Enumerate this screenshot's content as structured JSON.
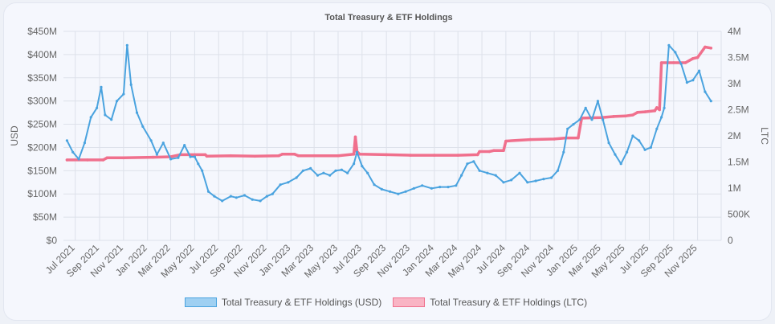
{
  "chart_data": {
    "type": "line",
    "title": "Total Treasury & ETF Holdings",
    "y_left_label": "USD",
    "y_right_label": "LTC",
    "y_left_ticks": [
      "$0",
      "$50M",
      "$100M",
      "$150M",
      "$200M",
      "$250M",
      "$300M",
      "$350M",
      "$400M",
      "$450M"
    ],
    "y_right_ticks": [
      "0",
      "500K",
      "1M",
      "1.5M",
      "2M",
      "2.5M",
      "3M",
      "3.5M",
      "4M"
    ],
    "y_left_range": [
      0,
      450000000
    ],
    "y_right_range": [
      0,
      4000000
    ],
    "x_ticks": [
      "Jul 2021",
      "Sep 2021",
      "Nov 2021",
      "Jan 2022",
      "Mar 2022",
      "May 2022",
      "Jul 2022",
      "Sep 2022",
      "Nov 2022",
      "Jan 2023",
      "Mar 2023",
      "May 2023",
      "Jul 2023",
      "Sep 2023",
      "Nov 2023",
      "Jan 2024",
      "Mar 2024",
      "May 2024",
      "Jul 2024",
      "Sep 2024",
      "Nov 2024",
      "Jan 2025",
      "Mar 2025",
      "May 2025",
      "Jul 2025",
      "Sep 2025",
      "Nov 2025"
    ],
    "grid": true,
    "legend_position": "bottom",
    "series": [
      {
        "name": "Total Treasury & ETF Holdings (USD)",
        "axis": "left",
        "color": "#4aa3df",
        "fill": "#9fd0f2",
        "x": [
          "2021-06-10",
          "2021-06-25",
          "2021-07-10",
          "2021-07-25",
          "2021-08-10",
          "2021-08-25",
          "2021-09-05",
          "2021-09-15",
          "2021-10-01",
          "2021-10-15",
          "2021-11-01",
          "2021-11-10",
          "2021-11-20",
          "2021-12-05",
          "2021-12-20",
          "2022-01-10",
          "2022-01-25",
          "2022-02-10",
          "2022-03-01",
          "2022-03-20",
          "2022-04-05",
          "2022-04-20",
          "2022-05-01",
          "2022-05-10",
          "2022-05-20",
          "2022-06-05",
          "2022-06-20",
          "2022-07-10",
          "2022-08-01",
          "2022-08-15",
          "2022-09-05",
          "2022-09-25",
          "2022-10-15",
          "2022-11-01",
          "2022-11-15",
          "2022-12-05",
          "2022-12-25",
          "2023-01-15",
          "2023-02-01",
          "2023-02-20",
          "2023-03-10",
          "2023-03-25",
          "2023-04-10",
          "2023-04-25",
          "2023-05-10",
          "2023-05-25",
          "2023-06-10",
          "2023-06-18",
          "2023-07-01",
          "2023-07-15",
          "2023-08-01",
          "2023-08-20",
          "2023-09-10",
          "2023-10-01",
          "2023-10-20",
          "2023-11-10",
          "2023-12-01",
          "2023-12-25",
          "2024-01-15",
          "2024-02-05",
          "2024-02-25",
          "2024-03-10",
          "2024-03-25",
          "2024-04-10",
          "2024-04-25",
          "2024-05-15",
          "2024-06-05",
          "2024-06-25",
          "2024-07-15",
          "2024-08-05",
          "2024-08-25",
          "2024-09-15",
          "2024-10-05",
          "2024-10-25",
          "2024-11-10",
          "2024-11-25",
          "2024-12-05",
          "2024-12-20",
          "2025-01-05",
          "2025-01-20",
          "2025-02-05",
          "2025-02-20",
          "2025-03-05",
          "2025-03-20",
          "2025-04-05",
          "2025-04-20",
          "2025-05-05",
          "2025-05-20",
          "2025-06-05",
          "2025-06-20",
          "2025-07-05",
          "2025-07-20",
          "2025-08-01",
          "2025-08-08",
          "2025-08-20",
          "2025-09-05",
          "2025-09-20",
          "2025-10-05",
          "2025-10-20",
          "2025-11-05",
          "2025-11-20",
          "2025-12-05"
        ],
        "values": [
          215000000,
          190000000,
          175000000,
          210000000,
          265000000,
          285000000,
          330000000,
          270000000,
          260000000,
          300000000,
          315000000,
          420000000,
          335000000,
          275000000,
          245000000,
          215000000,
          185000000,
          210000000,
          175000000,
          178000000,
          205000000,
          180000000,
          180000000,
          165000000,
          150000000,
          105000000,
          95000000,
          85000000,
          95000000,
          92000000,
          97000000,
          88000000,
          85000000,
          95000000,
          100000000,
          120000000,
          125000000,
          135000000,
          150000000,
          155000000,
          140000000,
          145000000,
          140000000,
          150000000,
          152000000,
          145000000,
          165000000,
          190000000,
          160000000,
          145000000,
          120000000,
          110000000,
          105000000,
          100000000,
          105000000,
          112000000,
          118000000,
          112000000,
          115000000,
          115000000,
          118000000,
          140000000,
          165000000,
          170000000,
          150000000,
          145000000,
          140000000,
          125000000,
          130000000,
          145000000,
          125000000,
          128000000,
          132000000,
          135000000,
          150000000,
          190000000,
          240000000,
          250000000,
          260000000,
          285000000,
          260000000,
          300000000,
          260000000,
          210000000,
          185000000,
          165000000,
          190000000,
          225000000,
          215000000,
          195000000,
          200000000,
          240000000,
          265000000,
          285000000,
          420000000,
          405000000,
          380000000,
          340000000,
          345000000,
          365000000,
          320000000,
          300000000
        ]
      },
      {
        "name": "Total Treasury & ETF Holdings (LTC)",
        "axis": "right",
        "color": "#f0708d",
        "fill": "#f9b4c4",
        "x": [
          "2021-06-10",
          "2021-08-01",
          "2021-09-10",
          "2021-09-20",
          "2021-11-01",
          "2022-01-15",
          "2022-03-01",
          "2022-03-25",
          "2022-05-01",
          "2022-05-28",
          "2022-06-01",
          "2022-08-01",
          "2022-10-01",
          "2022-12-01",
          "2022-12-10",
          "2023-01-10",
          "2023-01-20",
          "2023-03-01",
          "2023-05-01",
          "2023-06-10",
          "2023-06-14",
          "2023-06-18",
          "2023-06-25",
          "2023-09-01",
          "2023-11-01",
          "2024-01-01",
          "2024-03-01",
          "2024-04-20",
          "2024-04-25",
          "2024-05-20",
          "2024-06-01",
          "2024-06-25",
          "2024-07-01",
          "2024-09-01",
          "2024-11-01",
          "2024-12-01",
          "2025-01-01",
          "2025-01-10",
          "2025-03-01",
          "2025-04-01",
          "2025-05-01",
          "2025-05-20",
          "2025-06-01",
          "2025-06-20",
          "2025-07-15",
          "2025-07-20",
          "2025-07-27",
          "2025-08-01",
          "2025-09-01",
          "2025-10-01",
          "2025-10-20",
          "2025-11-01",
          "2025-11-20",
          "2025-12-05"
        ],
        "values": [
          1540000,
          1540000,
          1540000,
          1580000,
          1580000,
          1590000,
          1600000,
          1640000,
          1640000,
          1640000,
          1610000,
          1620000,
          1610000,
          1620000,
          1650000,
          1650000,
          1620000,
          1620000,
          1620000,
          1650000,
          1980000,
          1700000,
          1650000,
          1640000,
          1630000,
          1630000,
          1630000,
          1640000,
          1700000,
          1700000,
          1720000,
          1720000,
          1900000,
          1930000,
          1940000,
          1960000,
          1960000,
          2340000,
          2350000,
          2370000,
          2380000,
          2400000,
          2450000,
          2460000,
          2480000,
          2540000,
          2500000,
          3400000,
          3400000,
          3400000,
          3480000,
          3500000,
          3700000,
          3680000
        ]
      }
    ]
  }
}
